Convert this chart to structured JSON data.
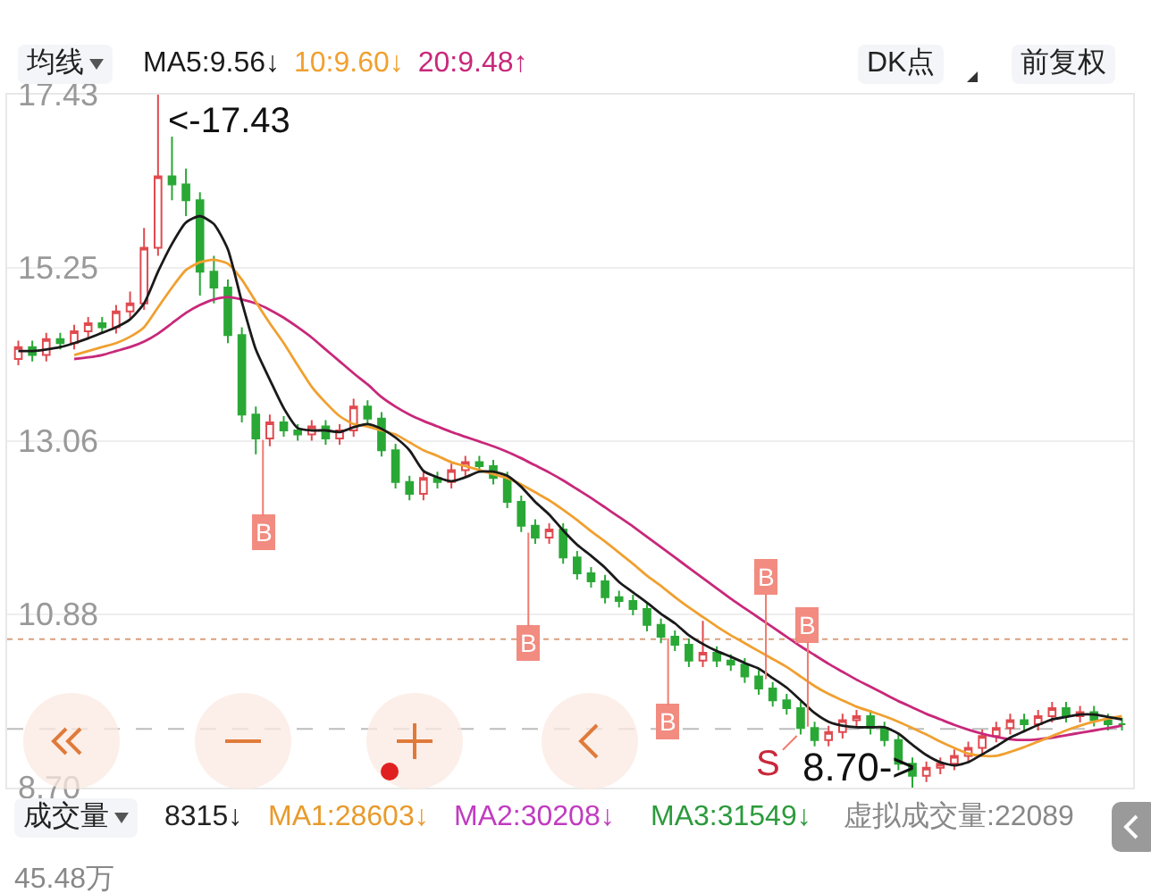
{
  "chart_data": {
    "type": "candlestick",
    "categories": [
      null,
      null,
      null,
      null,
      null,
      null,
      null,
      null,
      null,
      null,
      null,
      null,
      null,
      null,
      null,
      null,
      null,
      null,
      null,
      null,
      null,
      null,
      null,
      null,
      null,
      null,
      null,
      null,
      null,
      null,
      null,
      null,
      null,
      null,
      null,
      null,
      null,
      null,
      null,
      null,
      null,
      null,
      null,
      null,
      null,
      null,
      null,
      null,
      null,
      null,
      null,
      null,
      null,
      null,
      null,
      null,
      null,
      null,
      null,
      null,
      null,
      null,
      null,
      null,
      null,
      null,
      null,
      null,
      null,
      null,
      null,
      null,
      null,
      null,
      null,
      null,
      null,
      null,
      null,
      null
    ],
    "ohlc": [
      [
        14.1,
        14.33,
        14.02,
        14.25
      ],
      [
        14.25,
        14.33,
        14.07,
        14.15
      ],
      [
        14.15,
        14.43,
        14.07,
        14.35
      ],
      [
        14.35,
        14.43,
        14.22,
        14.3
      ],
      [
        14.3,
        14.53,
        14.22,
        14.45
      ],
      [
        14.45,
        14.63,
        14.37,
        14.55
      ],
      [
        14.55,
        14.63,
        14.42,
        14.5
      ],
      [
        14.5,
        14.78,
        14.42,
        14.7
      ],
      [
        14.7,
        14.95,
        14.62,
        14.8
      ],
      [
        14.8,
        15.75,
        14.72,
        15.5
      ],
      [
        15.5,
        17.43,
        15.4,
        16.4
      ],
      [
        16.4,
        16.9,
        16.1,
        16.3
      ],
      [
        16.3,
        16.5,
        15.9,
        16.1
      ],
      [
        16.1,
        16.2,
        14.9,
        15.2
      ],
      [
        15.2,
        15.4,
        14.8,
        15.0
      ],
      [
        15.0,
        15.1,
        14.3,
        14.4
      ],
      [
        14.4,
        14.5,
        13.3,
        13.4
      ],
      [
        13.4,
        13.5,
        12.9,
        13.1
      ],
      [
        13.1,
        13.4,
        13.0,
        13.3
      ],
      [
        13.3,
        13.38,
        13.12,
        13.2
      ],
      [
        13.2,
        13.28,
        13.07,
        13.15
      ],
      [
        13.15,
        13.33,
        13.07,
        13.25
      ],
      [
        13.25,
        13.33,
        13.02,
        13.1
      ],
      [
        13.1,
        13.28,
        13.02,
        13.2
      ],
      [
        13.2,
        13.6,
        13.12,
        13.5
      ],
      [
        13.5,
        13.58,
        13.27,
        13.35
      ],
      [
        13.35,
        13.43,
        12.87,
        12.95
      ],
      [
        12.95,
        13.03,
        12.47,
        12.55
      ],
      [
        12.55,
        12.63,
        12.32,
        12.4
      ],
      [
        12.4,
        12.68,
        12.32,
        12.6
      ],
      [
        12.6,
        12.68,
        12.47,
        12.55
      ],
      [
        12.55,
        12.78,
        12.47,
        12.7
      ],
      [
        12.7,
        12.88,
        12.62,
        12.8
      ],
      [
        12.8,
        12.88,
        12.67,
        12.75
      ],
      [
        12.75,
        12.83,
        12.52,
        12.6
      ],
      [
        12.6,
        12.68,
        12.22,
        12.3
      ],
      [
        12.3,
        12.38,
        11.92,
        12.0
      ],
      [
        12.0,
        12.08,
        11.77,
        11.85
      ],
      [
        11.85,
        12.03,
        11.77,
        11.95
      ],
      [
        11.95,
        12.03,
        11.52,
        11.6
      ],
      [
        11.6,
        11.68,
        11.32,
        11.4
      ],
      [
        11.4,
        11.48,
        11.22,
        11.3
      ],
      [
        11.3,
        11.38,
        11.02,
        11.1
      ],
      [
        11.1,
        11.18,
        10.97,
        11.05
      ],
      [
        11.05,
        11.13,
        10.87,
        10.95
      ],
      [
        10.95,
        11.03,
        10.67,
        10.75
      ],
      [
        10.75,
        10.83,
        10.52,
        10.6
      ],
      [
        10.6,
        10.68,
        10.42,
        10.5
      ],
      [
        10.5,
        10.58,
        10.22,
        10.3
      ],
      [
        10.3,
        10.8,
        10.22,
        10.4
      ],
      [
        10.4,
        10.48,
        10.22,
        10.3
      ],
      [
        10.3,
        10.38,
        10.17,
        10.25
      ],
      [
        10.25,
        10.33,
        10.02,
        10.1
      ],
      [
        10.1,
        10.18,
        9.87,
        9.95
      ],
      [
        9.95,
        10.03,
        9.72,
        9.8
      ],
      [
        9.8,
        9.88,
        9.62,
        9.7
      ],
      [
        9.7,
        9.78,
        9.37,
        9.45
      ],
      [
        9.45,
        9.53,
        9.22,
        9.3
      ],
      [
        9.3,
        9.48,
        9.22,
        9.4
      ],
      [
        9.4,
        9.63,
        9.32,
        9.55
      ],
      [
        9.55,
        9.68,
        9.47,
        9.6
      ],
      [
        9.6,
        9.68,
        9.37,
        9.45
      ],
      [
        9.45,
        9.53,
        9.22,
        9.3
      ],
      [
        9.3,
        9.38,
        8.92,
        9.0
      ],
      [
        9.0,
        9.08,
        8.7,
        8.85
      ],
      [
        8.85,
        9.03,
        8.77,
        8.95
      ],
      [
        8.95,
        9.08,
        8.87,
        9.0
      ],
      [
        9.0,
        9.18,
        8.92,
        9.1
      ],
      [
        9.1,
        9.28,
        9.02,
        9.2
      ],
      [
        9.2,
        9.43,
        9.12,
        9.35
      ],
      [
        9.35,
        9.53,
        9.27,
        9.45
      ],
      [
        9.45,
        9.63,
        9.37,
        9.55
      ],
      [
        9.55,
        9.63,
        9.42,
        9.5
      ],
      [
        9.5,
        9.68,
        9.42,
        9.6
      ],
      [
        9.6,
        9.78,
        9.52,
        9.7
      ],
      [
        9.7,
        9.78,
        9.52,
        9.6
      ],
      [
        9.6,
        9.73,
        9.52,
        9.65
      ],
      [
        9.65,
        9.73,
        9.47,
        9.55
      ],
      [
        9.55,
        9.63,
        9.42,
        9.5
      ],
      [
        9.5,
        9.58,
        9.42,
        9.5
      ]
    ],
    "series": [
      {
        "name": "MA5:9.56↓",
        "type": "line",
        "color": "#1a1a1a",
        "values": [
          14.2,
          14.2,
          14.22,
          14.25,
          14.3,
          14.36,
          14.43,
          14.5,
          14.6,
          14.8,
          15.2,
          15.55,
          15.82,
          15.9,
          15.8,
          15.48,
          14.82,
          14.22,
          13.84,
          13.48,
          13.23,
          13.2,
          13.2,
          13.18,
          13.24,
          13.28,
          13.22,
          13.11,
          12.95,
          12.69,
          12.61,
          12.56,
          12.61,
          12.68,
          12.68,
          12.63,
          12.49,
          12.3,
          12.14,
          11.94,
          11.76,
          11.62,
          11.47,
          11.29,
          11.16,
          11.03,
          10.89,
          10.77,
          10.62,
          10.51,
          10.42,
          10.35,
          10.27,
          10.2,
          10.08,
          9.96,
          9.8,
          9.64,
          9.53,
          9.48,
          9.46,
          9.46,
          9.46,
          9.38,
          9.24,
          9.11,
          9.02,
          8.98,
          9.02,
          9.12,
          9.22,
          9.33,
          9.41,
          9.49,
          9.56,
          9.59,
          9.62,
          9.62,
          9.59,
          9.56
        ]
      },
      {
        "name": "10:9.60↓",
        "type": "line",
        "color": "#f0a030",
        "values": [
          null,
          null,
          null,
          null,
          14.15,
          14.2,
          14.25,
          14.3,
          14.38,
          14.5,
          14.75,
          15.0,
          15.22,
          15.32,
          15.35,
          15.3,
          15.1,
          14.82,
          14.55,
          14.3,
          14.02,
          13.75,
          13.55,
          13.38,
          13.28,
          13.25,
          13.2,
          13.15,
          13.05,
          12.95,
          12.88,
          12.8,
          12.75,
          12.7,
          12.65,
          12.6,
          12.52,
          12.42,
          12.32,
          12.2,
          12.07,
          11.93,
          11.8,
          11.66,
          11.52,
          11.37,
          11.24,
          11.1,
          10.97,
          10.85,
          10.73,
          10.62,
          10.52,
          10.42,
          10.32,
          10.22,
          10.1,
          9.98,
          9.88,
          9.8,
          9.72,
          9.66,
          9.6,
          9.53,
          9.45,
          9.37,
          9.28,
          9.2,
          9.13,
          9.1,
          9.1,
          9.15,
          9.21,
          9.28,
          9.35,
          9.42,
          9.48,
          9.53,
          9.57,
          9.6
        ]
      },
      {
        "name": "20:9.48↑",
        "type": "line",
        "color": "#c8287a",
        "values": [
          null,
          null,
          null,
          null,
          14.1,
          14.12,
          14.15,
          14.2,
          14.25,
          14.32,
          14.42,
          14.55,
          14.68,
          14.78,
          14.85,
          14.88,
          14.85,
          14.8,
          14.72,
          14.62,
          14.5,
          14.37,
          14.22,
          14.07,
          13.92,
          13.78,
          13.62,
          13.5,
          13.4,
          13.32,
          13.25,
          13.18,
          13.12,
          13.06,
          13.0,
          12.93,
          12.85,
          12.76,
          12.67,
          12.57,
          12.46,
          12.35,
          12.23,
          12.11,
          11.99,
          11.86,
          11.73,
          11.6,
          11.47,
          11.34,
          11.21,
          11.08,
          10.96,
          10.84,
          10.72,
          10.6,
          10.48,
          10.37,
          10.26,
          10.16,
          10.06,
          9.97,
          9.88,
          9.79,
          9.71,
          9.63,
          9.56,
          9.49,
          9.43,
          9.38,
          9.34,
          9.31,
          9.3,
          9.31,
          9.33,
          9.36,
          9.39,
          9.42,
          9.45,
          9.48
        ]
      }
    ],
    "ylim": [
      8.7,
      17.43
    ],
    "yticks": [
      {
        "value": 8.7,
        "label": "8.70"
      },
      10.88,
      13.06,
      15.25,
      17.43
    ],
    "grid": "y",
    "legend": "top",
    "tick_labels": "y",
    "ref_lines": [
      {
        "axis": "y",
        "value": 10.57,
        "color": "#d9a07f",
        "line_style": "dotted"
      },
      {
        "axis": "y",
        "value": 9.44,
        "color": "#bdbdbd",
        "line_style": "dashed"
      }
    ],
    "annotations": [
      "均线",
      "DK点",
      "前复权",
      "成交量",
      "8315↓",
      "MA1:28603↓",
      "MA2:30208↓",
      "MA3:31549↓",
      "虚拟成交量:22089",
      "45.48万",
      "<-17.43",
      "8.70->",
      {
        "text": "B",
        "y": 13.15
      },
      {
        "text": "B",
        "y": 11.98
      },
      {
        "text": "B",
        "y": 10.65
      },
      {
        "text": "B",
        "y": 10.0
      },
      {
        "text": "B",
        "y": 9.4
      },
      {
        "text": "S",
        "y": 9.4
      }
    ]
  }
}
